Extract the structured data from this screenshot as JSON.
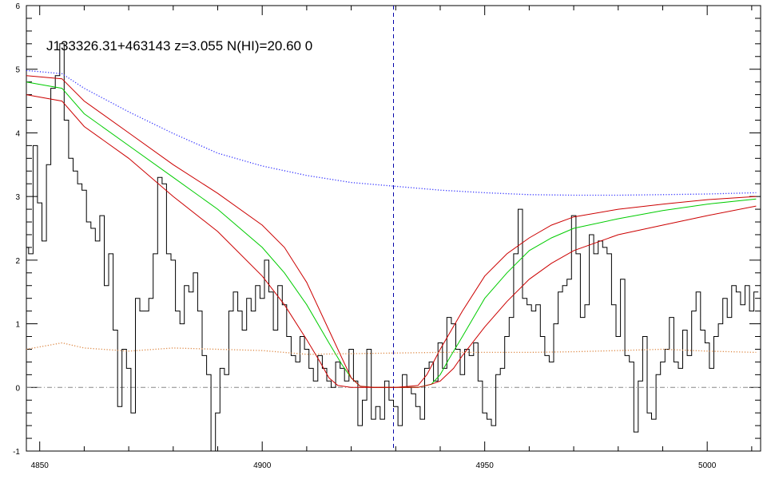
{
  "chart_data": {
    "type": "line",
    "title": "J133326.31+463143 z=3.055 N(HI)=20.60 0",
    "xlabel": "",
    "ylabel": "",
    "xlim": [
      4847,
      5012
    ],
    "ylim": [
      -1,
      6
    ],
    "x_ticks": [
      "4850",
      "4900",
      "4950",
      "5000"
    ],
    "x_tick_values": [
      4850,
      4900,
      4950,
      5000
    ],
    "y_ticks": [
      "-1",
      "0",
      "1",
      "2",
      "3",
      "4",
      "5",
      "6"
    ],
    "y_tick_values": [
      -1,
      0,
      1,
      2,
      3,
      4,
      5,
      6
    ],
    "grid": false,
    "vline_x": 4929.5,
    "hline_y": 0,
    "colors": {
      "flux": "#000000",
      "model": "#00cc00",
      "model_bounds": "#cc0000",
      "continuum": "#3333ff",
      "error": "#dd8844",
      "vline": "#0000aa",
      "hline": "#888888"
    },
    "series": [
      {
        "style": "step",
        "color": "#000000",
        "x": [
          4847,
          4848,
          4849,
          4850,
          4851,
          4852,
          4853,
          4854,
          4855,
          4856,
          4857,
          4858,
          4859,
          4860,
          4861,
          4862,
          4863,
          4864,
          4865,
          4866,
          4867,
          4868,
          4869,
          4870,
          4871,
          4872,
          4873,
          4874,
          4875,
          4876,
          4877,
          4878,
          4879,
          4880,
          4881,
          4882,
          4883,
          4884,
          4885,
          4886,
          4887,
          4888,
          4889,
          4890,
          4891,
          4892,
          4893,
          4894,
          4895,
          4896,
          4897,
          4898,
          4899,
          4900,
          4901,
          4902,
          4903,
          4904,
          4905,
          4906,
          4907,
          4908,
          4909,
          4910,
          4911,
          4912,
          4913,
          4914,
          4915,
          4916,
          4917,
          4918,
          4919,
          4920,
          4921,
          4922,
          4923,
          4924,
          4925,
          4926,
          4927,
          4928,
          4929,
          4930,
          4931,
          4932,
          4933,
          4934,
          4935,
          4936,
          4937,
          4938,
          4939,
          4940,
          4941,
          4942,
          4943,
          4944,
          4945,
          4946,
          4947,
          4948,
          4949,
          4950,
          4951,
          4952,
          4953,
          4954,
          4955,
          4956,
          4957,
          4958,
          4959,
          4960,
          4961,
          4962,
          4963,
          4964,
          4965,
          4966,
          4967,
          4968,
          4969,
          4970,
          4971,
          4972,
          4973,
          4974,
          4975,
          4976,
          4977,
          4978,
          4979,
          4980,
          4981,
          4982,
          4983,
          4984,
          4985,
          4986,
          4987,
          4988,
          4989,
          4990,
          4991,
          4992,
          4993,
          4994,
          4995,
          4996,
          4997,
          4998,
          4999,
          5000,
          5001,
          5002,
          5003,
          5004,
          5005,
          5006,
          5007,
          5008,
          5009,
          5010,
          5011
        ],
        "y": [
          2.2,
          2.1,
          3.8,
          2.9,
          2.3,
          3.5,
          4.7,
          4.9,
          5.4,
          4.2,
          3.6,
          3.4,
          3.2,
          3.1,
          2.6,
          2.5,
          2.3,
          2.7,
          1.6,
          2.1,
          0.9,
          -0.3,
          0.6,
          0.3,
          -0.4,
          1.4,
          1.2,
          1.2,
          1.4,
          2.1,
          3.3,
          3.2,
          2.1,
          2.0,
          1.2,
          1.0,
          1.6,
          1.5,
          1.8,
          1.2,
          0.5,
          0.2,
          -1.0,
          -0.4,
          0.3,
          0.2,
          1.2,
          1.5,
          1.2,
          0.9,
          1.4,
          1.2,
          1.6,
          1.4,
          2.0,
          1.5,
          0.9,
          1.6,
          1.3,
          0.8,
          0.5,
          0.4,
          0.8,
          0.6,
          0.3,
          0.1,
          0.5,
          0.3,
          0.1,
          0.0,
          0.4,
          0.3,
          0.1,
          0.6,
          0.1,
          -0.6,
          -0.2,
          0.6,
          -0.5,
          -0.3,
          -0.5,
          0.1,
          -0.2,
          -0.3,
          -0.6,
          0.2,
          0.0,
          -0.1,
          -0.3,
          -0.5,
          0.3,
          0.4,
          0.1,
          0.7,
          0.3,
          1.1,
          1.0,
          0.6,
          0.2,
          0.6,
          0.5,
          0.7,
          0.1,
          -0.4,
          -0.5,
          -0.6,
          0.2,
          0.3,
          0.8,
          1.1,
          2.1,
          2.8,
          1.4,
          1.3,
          1.2,
          1.3,
          0.8,
          0.5,
          0.4,
          1.0,
          1.5,
          1.6,
          1.7,
          2.7,
          2.1,
          1.1,
          1.3,
          2.4,
          2.1,
          2.3,
          2.2,
          2.1,
          1.3,
          0.8,
          1.7,
          0.5,
          0.4,
          -0.7,
          0.1,
          0.8,
          -0.4,
          -0.5,
          0.2,
          0.4,
          0.6,
          1.1,
          0.4,
          0.3,
          0.9,
          0.5,
          1.2,
          1.5,
          0.9,
          0.7,
          0.3,
          0.8,
          1.0,
          1.4,
          1.1,
          1.6,
          1.5,
          1.3,
          1.6,
          1.2,
          1.5
        ]
      },
      {
        "style": "line",
        "color": "#00cc00",
        "x": [
          4847,
          4855,
          4860,
          4870,
          4880,
          4890,
          4900,
          4905,
          4910,
          4915,
          4918,
          4920,
          4922,
          4925,
          4930,
          4935,
          4938,
          4940,
          4942,
          4945,
          4950,
          4955,
          4960,
          4965,
          4970,
          4980,
          4990,
          5000,
          5011
        ],
        "y": [
          4.8,
          4.7,
          4.3,
          3.8,
          3.3,
          2.8,
          2.2,
          1.8,
          1.3,
          0.7,
          0.35,
          0.15,
          0.02,
          0.0,
          0.0,
          0.0,
          0.05,
          0.2,
          0.45,
          0.8,
          1.4,
          1.8,
          2.15,
          2.35,
          2.5,
          2.65,
          2.78,
          2.88,
          2.96
        ]
      },
      {
        "style": "line",
        "color": "#cc0000",
        "x": [
          4847,
          4855,
          4860,
          4870,
          4880,
          4890,
          4900,
          4905,
          4910,
          4915,
          4918,
          4920,
          4922,
          4925,
          4930,
          4935,
          4937,
          4940,
          4945,
          4950,
          4955,
          4960,
          4965,
          4970,
          4980,
          4990,
          5000,
          5011
        ],
        "y": [
          4.9,
          4.85,
          4.5,
          4.0,
          3.5,
          3.05,
          2.55,
          2.2,
          1.65,
          0.9,
          0.45,
          0.15,
          0.02,
          0.0,
          0.0,
          0.03,
          0.2,
          0.6,
          1.2,
          1.75,
          2.1,
          2.35,
          2.55,
          2.68,
          2.8,
          2.88,
          2.95,
          3.0
        ]
      },
      {
        "style": "line",
        "color": "#cc0000",
        "x": [
          4847,
          4855,
          4860,
          4870,
          4880,
          4890,
          4900,
          4905,
          4910,
          4913,
          4915,
          4917,
          4920,
          4930,
          4935,
          4938,
          4940,
          4943,
          4945,
          4950,
          4955,
          4960,
          4965,
          4970,
          4980,
          4990,
          5000,
          5011
        ],
        "y": [
          4.6,
          4.5,
          4.1,
          3.6,
          3.0,
          2.45,
          1.75,
          1.3,
          0.75,
          0.4,
          0.15,
          0.03,
          0.0,
          0.0,
          0.0,
          0.05,
          0.1,
          0.3,
          0.5,
          0.95,
          1.35,
          1.7,
          1.95,
          2.15,
          2.4,
          2.55,
          2.7,
          2.85
        ]
      },
      {
        "style": "dotted",
        "color": "#3333ff",
        "x": [
          4847,
          4855,
          4860,
          4870,
          4880,
          4890,
          4900,
          4910,
          4920,
          4930,
          4940,
          4950,
          4960,
          4970,
          4980,
          4990,
          5000,
          5011
        ],
        "y": [
          4.98,
          4.93,
          4.7,
          4.33,
          3.99,
          3.68,
          3.48,
          3.33,
          3.22,
          3.16,
          3.1,
          3.06,
          3.03,
          3.02,
          3.02,
          3.03,
          3.04,
          3.06
        ]
      },
      {
        "style": "dotted",
        "color": "#dd8844",
        "x": [
          4847,
          4855,
          4860,
          4870,
          4880,
          4890,
          4900,
          4910,
          4920,
          4930,
          4940,
          4950,
          4960,
          4970,
          4980,
          4990,
          5000,
          5011
        ],
        "y": [
          0.6,
          0.7,
          0.62,
          0.57,
          0.62,
          0.6,
          0.58,
          0.52,
          0.53,
          0.54,
          0.55,
          0.55,
          0.55,
          0.56,
          0.58,
          0.6,
          0.57,
          0.55
        ]
      }
    ]
  }
}
